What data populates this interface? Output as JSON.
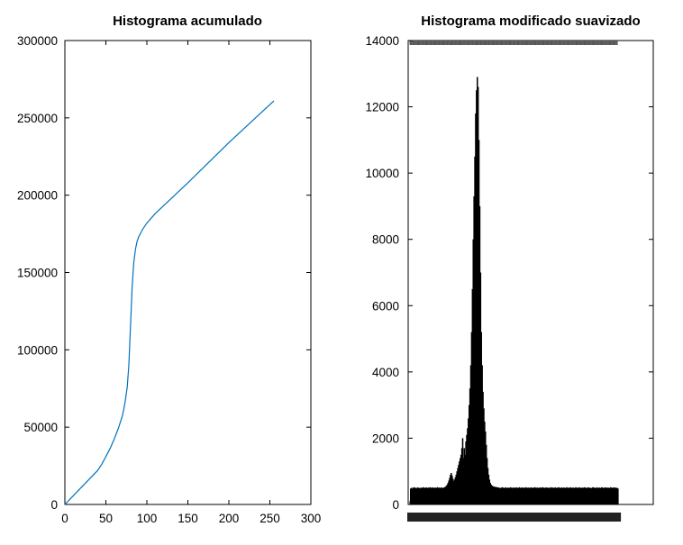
{
  "chart_data": [
    {
      "type": "line",
      "title": "Histograma acumulado",
      "xlabel": "",
      "ylabel": "",
      "xlim": [
        0,
        300
      ],
      "ylim": [
        0,
        300000
      ],
      "xticks": [
        "0",
        "50",
        "100",
        "150",
        "200",
        "250",
        "300"
      ],
      "yticks": [
        "0",
        "50000",
        "100000",
        "150000",
        "200000",
        "250000",
        "300000"
      ],
      "grid": false,
      "line_color": "#0072bd",
      "series": [
        {
          "x": [
            0,
            10,
            20,
            30,
            40,
            45,
            50,
            55,
            60,
            65,
            70,
            72,
            74,
            76,
            78,
            80,
            82,
            84,
            86,
            88,
            90,
            95,
            100,
            110,
            120,
            150,
            200,
            255
          ],
          "values": [
            0,
            5500,
            11000,
            16500,
            22000,
            26000,
            31000,
            36000,
            42000,
            49000,
            57000,
            62000,
            68000,
            76000,
            90000,
            115000,
            140000,
            156000,
            165000,
            170000,
            173000,
            178000,
            182000,
            188000,
            193000,
            208000,
            234000,
            261000
          ]
        }
      ]
    },
    {
      "type": "bar",
      "title": "Histograma modificado suavizado",
      "xlabel": "",
      "ylabel": "",
      "ylim": [
        0,
        14000
      ],
      "yticks": [
        "0",
        "2000",
        "4000",
        "6000",
        "8000",
        "10000",
        "12000",
        "14000"
      ],
      "grid": false,
      "bar_color": "#000000",
      "values": [
        480,
        500,
        470,
        510,
        490,
        520,
        495,
        480,
        505,
        515,
        490,
        500,
        485,
        510,
        495,
        505,
        520,
        500,
        490,
        515,
        505,
        495,
        510,
        500,
        520,
        490,
        505,
        515,
        500,
        495,
        510,
        505,
        490,
        520,
        500,
        510,
        495,
        505,
        515,
        490,
        500,
        510,
        520,
        540,
        560,
        600,
        650,
        720,
        800,
        900,
        950,
        870,
        780,
        700,
        750,
        820,
        900,
        1000,
        1100,
        1200,
        1300,
        1400,
        1500,
        1700,
        2000,
        1400,
        1700,
        1500,
        1900,
        2100,
        2300,
        2600,
        3000,
        3500,
        4200,
        5200,
        6500,
        8000,
        9300,
        10500,
        11800,
        12500,
        12900,
        12600,
        11000,
        9000,
        7000,
        5200,
        4200,
        3400,
        2900,
        2500,
        2200,
        1800,
        1400,
        1100,
        900,
        750,
        650,
        600,
        570,
        550,
        540,
        535,
        530,
        525,
        520,
        515,
        510,
        505,
        500,
        495,
        510,
        520,
        500,
        490,
        505,
        515,
        495,
        500,
        510,
        490,
        505,
        520,
        500,
        495,
        510,
        505,
        490,
        515,
        500,
        510,
        495,
        505,
        520,
        490,
        500,
        515,
        505,
        495,
        510,
        500,
        520,
        490,
        505,
        510,
        495,
        500,
        515,
        505,
        490,
        510,
        500,
        520,
        495,
        505,
        510,
        490,
        500,
        515,
        505,
        495,
        520,
        500,
        510,
        490,
        505,
        515,
        500,
        495,
        510,
        505,
        490,
        520,
        500,
        510,
        495,
        505,
        515,
        490,
        500,
        510,
        520,
        505,
        495,
        500,
        515,
        490,
        505,
        510,
        500,
        495,
        520,
        505,
        490,
        510,
        500,
        515,
        495,
        505,
        510,
        500,
        490,
        520,
        505,
        495,
        510,
        500,
        515,
        490,
        505,
        500,
        510,
        495,
        520,
        505,
        490,
        500,
        515,
        510,
        495,
        505,
        500,
        490,
        520,
        510,
        505,
        495,
        500,
        515,
        490,
        505,
        510,
        500,
        495,
        520,
        505,
        490,
        510,
        500,
        515,
        495,
        505,
        510,
        490,
        500,
        520,
        505,
        495,
        510,
        500,
        515,
        490,
        505,
        500,
        480
      ]
    }
  ]
}
